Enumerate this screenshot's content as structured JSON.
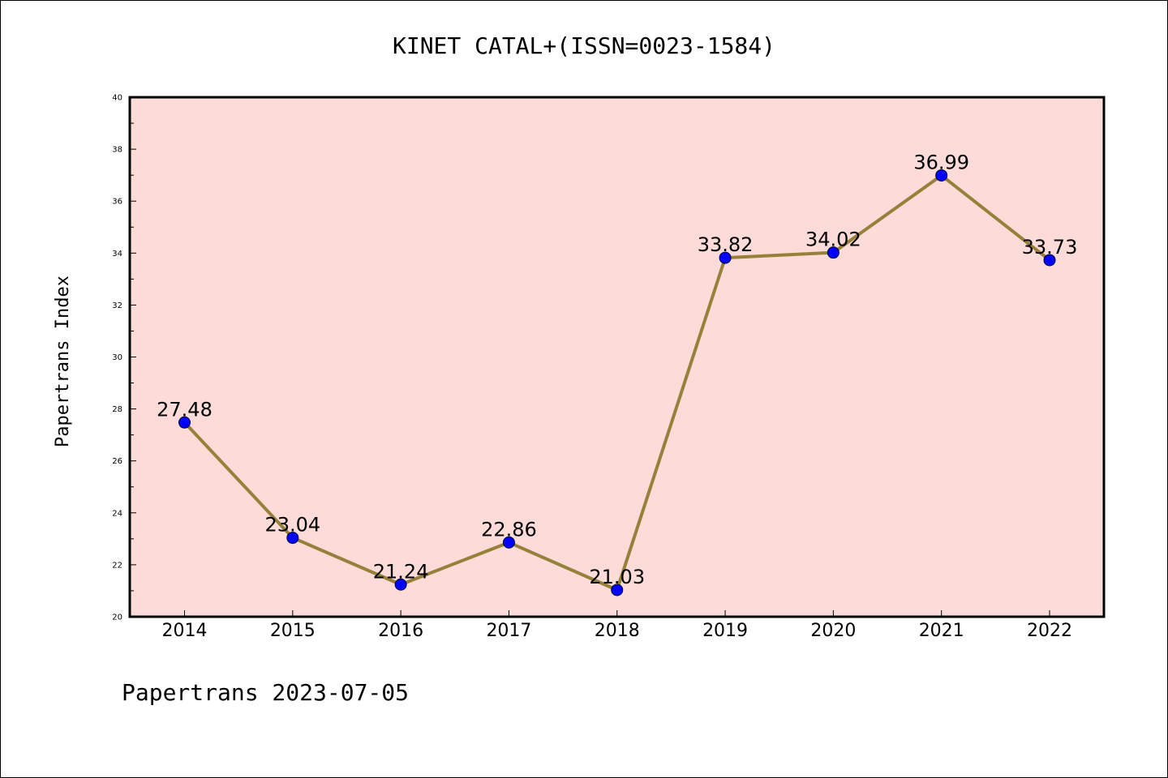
{
  "chart_data": {
    "type": "line",
    "title": "KINET CATAL+(ISSN=0023-1584)",
    "xlabel": "",
    "ylabel": "Papertrans Index",
    "footer": "Papertrans 2023-07-05",
    "categories": [
      "2014",
      "2015",
      "2016",
      "2017",
      "2018",
      "2019",
      "2020",
      "2021",
      "2022"
    ],
    "series": [
      {
        "values": [
          27.48,
          23.04,
          21.24,
          22.86,
          21.03,
          33.82,
          34.02,
          36.99,
          33.73
        ],
        "labels": [
          "27.48",
          "23.04",
          "21.24",
          "22.86",
          "21.03",
          "33.82",
          "34.02",
          "36.99",
          "33.73"
        ]
      }
    ],
    "ylim": [
      20,
      40
    ],
    "yticks": [
      20,
      22,
      24,
      26,
      28,
      30,
      32,
      34,
      36,
      38,
      40
    ],
    "grid": false,
    "colors": {
      "plot_background": "#fddbd9",
      "line": "#96803a",
      "marker": "#0000ff"
    }
  }
}
